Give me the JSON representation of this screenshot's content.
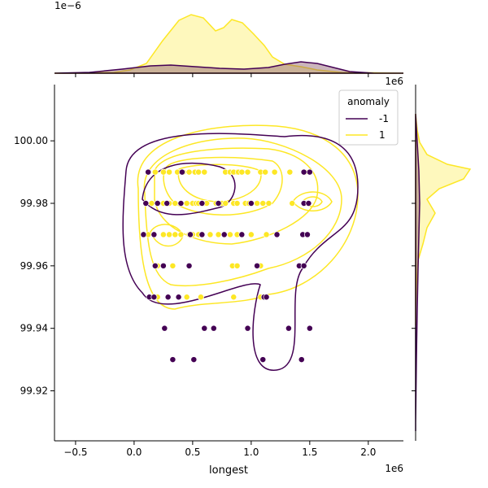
{
  "chart_data": {
    "type": "scatter",
    "title": "",
    "xlabel": "longest",
    "ylabel": "",
    "x_offset_label": "1e6",
    "y_offset_label": "1e6",
    "marg_x_offset_label": "1e−6",
    "xlim": [
      -0.68,
      2.3
    ],
    "ylim": [
      99.904,
      100.018
    ],
    "x_ticks": [
      -0.5,
      0.0,
      0.5,
      1.0,
      1.5,
      2.0
    ],
    "x_tick_labels": [
      "−0.5",
      "0.0",
      "0.5",
      "1.0",
      "1.5",
      "2.0"
    ],
    "y_ticks": [
      99.92,
      99.94,
      99.96,
      99.98,
      100.0
    ],
    "y_tick_labels": [
      "99.92",
      "99.94",
      "99.96",
      "99.98",
      "100.00"
    ],
    "legend": {
      "title": "anomaly",
      "placement": "top-right",
      "entries": [
        {
          "label": "-1",
          "color": "#440154"
        },
        {
          "label": "1",
          "color": "#fde725"
        }
      ]
    },
    "series": [
      {
        "name": "1",
        "color": "#fde725",
        "points": [
          [
            0.37,
            99.99
          ],
          [
            0.52,
            99.99
          ],
          [
            0.87,
            99.99
          ],
          [
            0.18,
            99.99
          ],
          [
            0.25,
            99.99
          ],
          [
            0.3,
            99.99
          ],
          [
            0.42,
            99.99
          ],
          [
            0.47,
            99.99
          ],
          [
            0.55,
            99.99
          ],
          [
            0.6,
            99.99
          ],
          [
            0.78,
            99.99
          ],
          [
            0.82,
            99.99
          ],
          [
            0.85,
            99.99
          ],
          [
            0.89,
            99.99
          ],
          [
            0.92,
            99.99
          ],
          [
            0.97,
            99.99
          ],
          [
            1.08,
            99.99
          ],
          [
            1.12,
            99.99
          ],
          [
            1.2,
            99.99
          ],
          [
            1.33,
            99.99
          ],
          [
            1.46,
            99.99
          ],
          [
            0.15,
            99.98
          ],
          [
            0.25,
            99.98
          ],
          [
            0.3,
            99.98
          ],
          [
            0.35,
            99.98
          ],
          [
            0.45,
            99.98
          ],
          [
            0.5,
            99.98
          ],
          [
            0.53,
            99.98
          ],
          [
            0.55,
            99.98
          ],
          [
            0.6,
            99.98
          ],
          [
            0.62,
            99.98
          ],
          [
            0.7,
            99.98
          ],
          [
            0.75,
            99.98
          ],
          [
            0.78,
            99.98
          ],
          [
            0.85,
            99.98
          ],
          [
            0.88,
            99.98
          ],
          [
            0.95,
            99.98
          ],
          [
            0.98,
            99.98
          ],
          [
            1.05,
            99.98
          ],
          [
            1.1,
            99.98
          ],
          [
            1.15,
            99.98
          ],
          [
            1.35,
            99.98
          ],
          [
            1.45,
            99.98
          ],
          [
            0.12,
            99.97
          ],
          [
            0.25,
            99.97
          ],
          [
            0.3,
            99.97
          ],
          [
            0.35,
            99.97
          ],
          [
            0.4,
            99.97
          ],
          [
            0.47,
            99.97
          ],
          [
            0.5,
            99.97
          ],
          [
            0.55,
            99.97
          ],
          [
            0.65,
            99.97
          ],
          [
            0.72,
            99.97
          ],
          [
            0.82,
            99.97
          ],
          [
            0.88,
            99.97
          ],
          [
            1.0,
            99.97
          ],
          [
            1.13,
            99.97
          ],
          [
            0.2,
            99.96
          ],
          [
            0.33,
            99.96
          ],
          [
            0.84,
            99.96
          ],
          [
            0.88,
            99.96
          ],
          [
            1.08,
            99.96
          ],
          [
            0.15,
            99.95
          ],
          [
            0.2,
            99.95
          ],
          [
            0.45,
            99.95
          ],
          [
            0.57,
            99.95
          ],
          [
            0.85,
            99.95
          ],
          [
            1.08,
            99.95
          ]
        ]
      },
      {
        "name": "-1",
        "color": "#440154",
        "points": [
          [
            0.12,
            99.99
          ],
          [
            0.41,
            99.99
          ],
          [
            1.45,
            99.99
          ],
          [
            1.5,
            99.99
          ],
          [
            0.1,
            99.98
          ],
          [
            0.2,
            99.98
          ],
          [
            0.28,
            99.98
          ],
          [
            0.4,
            99.98
          ],
          [
            0.58,
            99.98
          ],
          [
            0.72,
            99.98
          ],
          [
            1.0,
            99.98
          ],
          [
            1.45,
            99.98
          ],
          [
            1.49,
            99.98
          ],
          [
            0.08,
            99.97
          ],
          [
            0.17,
            99.97
          ],
          [
            0.48,
            99.97
          ],
          [
            0.58,
            99.97
          ],
          [
            0.77,
            99.97
          ],
          [
            0.92,
            99.97
          ],
          [
            1.22,
            99.97
          ],
          [
            1.44,
            99.97
          ],
          [
            1.48,
            99.97
          ],
          [
            0.18,
            99.96
          ],
          [
            0.25,
            99.96
          ],
          [
            0.47,
            99.96
          ],
          [
            1.05,
            99.96
          ],
          [
            1.41,
            99.96
          ],
          [
            1.45,
            99.96
          ],
          [
            0.13,
            99.95
          ],
          [
            0.17,
            99.95
          ],
          [
            0.29,
            99.95
          ],
          [
            0.38,
            99.95
          ],
          [
            1.11,
            99.95
          ],
          [
            1.13,
            99.95
          ],
          [
            0.26,
            99.94
          ],
          [
            0.6,
            99.94
          ],
          [
            0.68,
            99.94
          ],
          [
            0.97,
            99.94
          ],
          [
            1.32,
            99.94
          ],
          [
            1.5,
            99.94
          ],
          [
            0.33,
            99.93
          ],
          [
            0.51,
            99.93
          ],
          [
            1.1,
            99.93
          ],
          [
            1.43,
            99.93
          ]
        ]
      }
    ]
  }
}
